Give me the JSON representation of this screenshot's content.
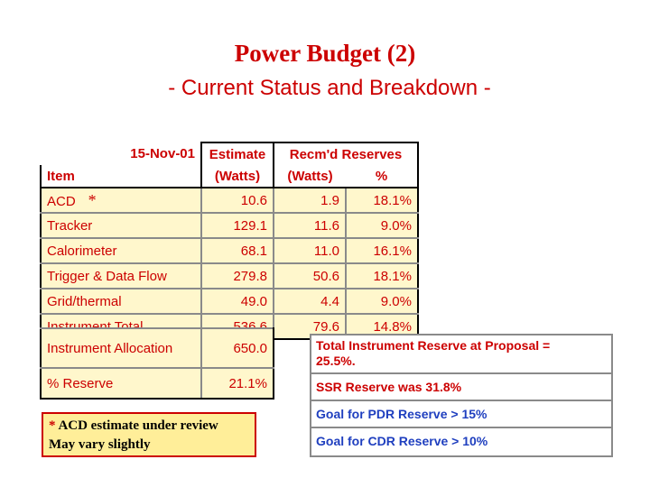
{
  "title": "Power Budget (2)",
  "subtitle": "- Current Status and Breakdown -",
  "table": {
    "date": "15-Nov-01",
    "header_estimate": "Estimate",
    "header_estimate_units": "(Watts)",
    "header_reserves": "Recm'd Reserves",
    "header_reserves_watts": "(Watts)",
    "header_reserves_pct": "%",
    "header_item": "Item",
    "rows": [
      {
        "item": "ACD",
        "estimate": "10.6",
        "reserve_w": "1.9",
        "reserve_pct": "18.1%",
        "note_mark": "*"
      },
      {
        "item": "Tracker",
        "estimate": "129.1",
        "reserve_w": "11.6",
        "reserve_pct": "9.0%"
      },
      {
        "item": "Calorimeter",
        "estimate": "68.1",
        "reserve_w": "11.0",
        "reserve_pct": "16.1%"
      },
      {
        "item": "Trigger & Data Flow",
        "estimate": "279.8",
        "reserve_w": "50.6",
        "reserve_pct": "18.1%"
      },
      {
        "item": "Grid/thermal",
        "estimate": "49.0",
        "reserve_w": "4.4",
        "reserve_pct": "9.0%"
      },
      {
        "item": "Instrument Total",
        "estimate": "536.6",
        "reserve_w": "79.6",
        "reserve_pct": "14.8%"
      }
    ],
    "allocation_label": "Instrument Allocation",
    "allocation_value": "650.0",
    "reserve_label": "% Reserve",
    "reserve_value": "21.1%"
  },
  "note": {
    "star": "*",
    "line1": "ACD estimate under review",
    "line2": "May vary slightly"
  },
  "reserve_box": {
    "line1": "Total Instrument Reserve at Proposal =",
    "line2": "25.5%.",
    "ssr": "SSR  Reserve was 31.8%",
    "pdr": "Goal for PDR  Reserve > 15%",
    "cdr": "Goal for CDR  Reserve > 10%"
  },
  "colors": {
    "title": "#cc0000",
    "cell_fill": "#fff7cc",
    "note_fill": "#ffee99",
    "blue_text": "#1f3fbf"
  }
}
